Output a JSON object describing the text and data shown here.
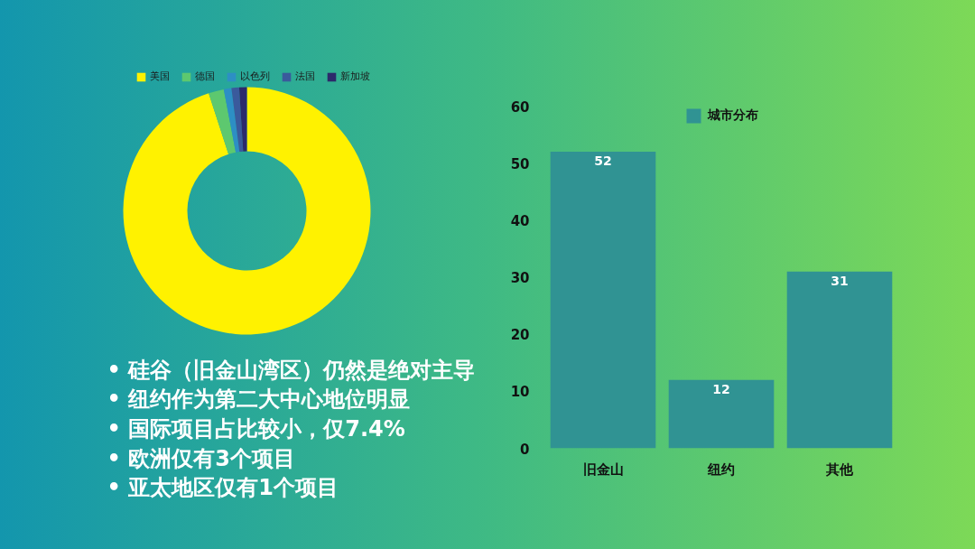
{
  "chart_data": [
    {
      "type": "donut",
      "categories": [
        "美国",
        "德国",
        "以色列",
        "法国",
        "新加坡"
      ],
      "values": [
        95,
        2,
        1,
        1,
        1
      ],
      "colors": [
        "#fff200",
        "#5dc86f",
        "#2d8fc4",
        "#3a5a9c",
        "#2c2a6b"
      ],
      "legend": "top",
      "annotations": [
        "• 硅谷（旧金山湾区）仍然是绝对主导",
        "• 纽约作为第二大中心地位明显",
        "• 国际项目占比较小，仅7.4%",
        "• 欧洲仅有3个项目",
        "• 亚太地区仅有1个项目"
      ]
    },
    {
      "type": "bar",
      "categories": [
        "旧金山",
        "纽约",
        "其他"
      ],
      "series": [
        {
          "name": "城市分布",
          "color": "#309393",
          "values": [
            52,
            12,
            31
          ]
        }
      ],
      "ylim": [
        0,
        60
      ],
      "yticks": [
        0,
        10,
        20,
        30,
        40,
        50,
        60
      ],
      "data_labels": true,
      "legend": "top"
    }
  ]
}
